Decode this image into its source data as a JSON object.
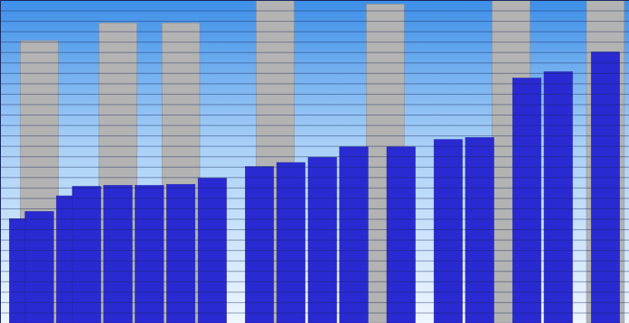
{
  "chart_data": {
    "type": "bar",
    "categories": [
      null,
      null,
      null,
      null,
      null,
      null,
      null,
      null,
      null,
      null,
      null,
      null,
      null,
      null,
      null,
      null,
      null,
      null,
      null,
      null,
      null,
      null,
      null,
      null,
      null,
      null,
      null,
      null,
      null,
      null,
      null,
      null,
      null,
      null,
      null,
      null,
      null,
      null,
      null,
      null
    ],
    "series": [
      {
        "color": "#b3b3b3",
        "values": [
          null,
          null,
          27.1,
          null,
          null,
          null,
          null,
          28.8,
          null,
          null,
          null,
          28.8,
          null,
          null,
          null,
          null,
          null,
          31,
          null,
          null,
          null,
          null,
          null,
          null,
          30.6,
          null,
          null,
          null,
          null,
          null,
          null,
          null,
          31,
          null,
          null,
          null,
          null,
          null,
          31,
          null
        ]
      },
      {
        "color": "#2a2ad2",
        "values": [
          null,
          10.0,
          10.7,
          null,
          12.2,
          13.1,
          null,
          13.2,
          null,
          13.2,
          null,
          13.3,
          null,
          13.9,
          null,
          null,
          15.0,
          null,
          15.4,
          null,
          15.9,
          null,
          16.9,
          null,
          null,
          16.9,
          null,
          null,
          17.6,
          null,
          17.8,
          null,
          null,
          23.5,
          null,
          24.1,
          null,
          null,
          26.0,
          null
        ]
      }
    ],
    "ylim": [
      0,
      31
    ],
    "yticks": [
      0,
      1,
      2,
      3,
      4,
      5,
      6,
      7,
      8,
      9,
      10,
      11,
      12,
      13,
      14,
      15,
      16,
      17,
      18,
      19,
      20,
      21,
      22,
      23,
      24,
      25,
      26,
      27,
      28,
      29,
      30,
      31
    ],
    "grid": true,
    "tick_labels": false
  }
}
